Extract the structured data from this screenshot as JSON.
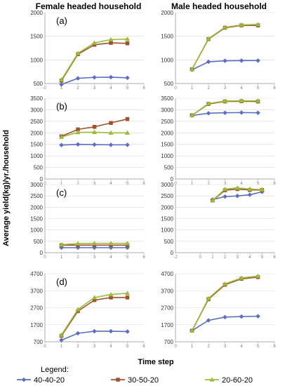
{
  "figure": {
    "col_titles": [
      "Female headed household",
      "Male headed household"
    ],
    "ylabel": "Average yield(kg)/yr./household",
    "xlabel": "Time step",
    "legend_title": "Legend:"
  },
  "colors": {
    "40-40-20": "#5B6FC0",
    "30-50-20": "#A0522D",
    "20-60-20": "#9BBB3B"
  },
  "chart_data": [
    {
      "type": "line",
      "row": 0,
      "col": 0,
      "panel_label": "(a)",
      "xlim": [
        0,
        6
      ],
      "ylim": [
        500,
        2000
      ],
      "yticks": [
        500,
        1000,
        1500,
        2000
      ],
      "xticks": [
        0,
        1,
        2,
        3,
        4,
        5,
        6
      ],
      "x": [
        1,
        2,
        3,
        4,
        5
      ],
      "series": [
        {
          "name": "40-40-20",
          "values": [
            480,
            610,
            630,
            635,
            620
          ]
        },
        {
          "name": "30-50-20",
          "values": [
            560,
            1120,
            1320,
            1360,
            1350
          ]
        },
        {
          "name": "20-60-20",
          "values": [
            580,
            1140,
            1360,
            1430,
            1440
          ]
        }
      ]
    },
    {
      "type": "line",
      "row": 0,
      "col": 1,
      "panel_label": "",
      "xlim": [
        0,
        6
      ],
      "ylim": [
        500,
        2000
      ],
      "yticks": [
        500,
        1000,
        1500,
        2000
      ],
      "xticks": [
        0,
        1,
        2,
        3,
        4,
        5,
        6
      ],
      "x": [
        1,
        2,
        3,
        4,
        5
      ],
      "series": [
        {
          "name": "40-40-20",
          "values": [
            790,
            960,
            980,
            985,
            985
          ]
        },
        {
          "name": "30-50-20",
          "values": [
            800,
            1440,
            1680,
            1730,
            1730
          ]
        },
        {
          "name": "20-60-20",
          "values": [
            800,
            1450,
            1690,
            1740,
            1750
          ]
        }
      ]
    },
    {
      "type": "line",
      "row": 1,
      "col": 0,
      "panel_label": "(b)",
      "xlim": [
        0,
        6
      ],
      "ylim": [
        0,
        3500
      ],
      "yticks": [
        0,
        500,
        1000,
        1500,
        2000,
        2500,
        3000,
        3500
      ],
      "xticks": [
        0,
        1,
        2,
        3,
        4,
        5,
        6
      ],
      "x": [
        1,
        2,
        3,
        4,
        5
      ],
      "series": [
        {
          "name": "40-40-20",
          "values": [
            1470,
            1500,
            1490,
            1480,
            1480
          ]
        },
        {
          "name": "30-50-20",
          "values": [
            1850,
            2150,
            2260,
            2430,
            2600
          ]
        },
        {
          "name": "20-60-20",
          "values": [
            1820,
            2020,
            2030,
            2000,
            2000
          ]
        }
      ]
    },
    {
      "type": "line",
      "row": 1,
      "col": 1,
      "panel_label": "",
      "xlim": [
        0,
        6
      ],
      "ylim": [
        0,
        3500
      ],
      "yticks": [
        0,
        500,
        1000,
        1500,
        2000,
        2500,
        3000,
        3500
      ],
      "xticks": [
        0,
        1,
        2,
        3,
        4,
        5,
        6
      ],
      "x": [
        1,
        2,
        3,
        4,
        5
      ],
      "series": [
        {
          "name": "40-40-20",
          "values": [
            2750,
            2850,
            2870,
            2880,
            2870
          ]
        },
        {
          "name": "30-50-20",
          "values": [
            2760,
            3250,
            3360,
            3370,
            3360
          ]
        },
        {
          "name": "20-60-20",
          "values": [
            2760,
            3270,
            3380,
            3390,
            3390
          ]
        }
      ]
    },
    {
      "type": "line",
      "row": 2,
      "col": 0,
      "panel_label": "(c)",
      "xlim": [
        0,
        6
      ],
      "ylim": [
        0,
        3000
      ],
      "yticks": [
        0,
        500,
        1000,
        1500,
        2000,
        2500,
        3000
      ],
      "xticks": [
        0,
        1,
        2,
        3,
        4,
        5,
        6
      ],
      "x": [
        1,
        2,
        3,
        4,
        5
      ],
      "series": [
        {
          "name": "40-40-20",
          "values": [
            220,
            220,
            220,
            220,
            220
          ]
        },
        {
          "name": "30-50-20",
          "values": [
            330,
            330,
            330,
            330,
            330
          ]
        },
        {
          "name": "20-60-20",
          "values": [
            350,
            400,
            410,
            410,
            410
          ]
        }
      ]
    },
    {
      "type": "line",
      "row": 2,
      "col": 1,
      "panel_label": "",
      "xlim": [
        -2,
        6
      ],
      "ylim": [
        0,
        3000
      ],
      "yticks": [
        0,
        500,
        1000,
        1500,
        2000,
        2500,
        3000
      ],
      "xticks": [
        -2,
        0,
        1,
        2,
        3,
        4,
        5,
        6
      ],
      "x": [
        1,
        2,
        3,
        4,
        5
      ],
      "series": [
        {
          "name": "40-40-20",
          "values": [
            2340,
            2470,
            2500,
            2550,
            2680
          ]
        },
        {
          "name": "30-50-20",
          "values": [
            2300,
            2750,
            2800,
            2760,
            2760
          ]
        },
        {
          "name": "20-60-20",
          "values": [
            2300,
            2800,
            2850,
            2800,
            2780
          ]
        }
      ]
    },
    {
      "type": "line",
      "row": 3,
      "col": 0,
      "panel_label": "(d)",
      "xlim": [
        0,
        6
      ],
      "ylim": [
        700,
        4700
      ],
      "yticks": [
        700,
        1700,
        2700,
        3700,
        4700
      ],
      "xticks": [
        0,
        1,
        2,
        3,
        4,
        5,
        6
      ],
      "x": [
        1,
        2,
        3,
        4,
        5
      ],
      "series": [
        {
          "name": "40-40-20",
          "values": [
            800,
            1200,
            1320,
            1320,
            1300
          ]
        },
        {
          "name": "30-50-20",
          "values": [
            1050,
            2500,
            3150,
            3300,
            3300
          ]
        },
        {
          "name": "20-60-20",
          "values": [
            1100,
            2600,
            3300,
            3480,
            3550
          ]
        }
      ]
    },
    {
      "type": "line",
      "row": 3,
      "col": 1,
      "panel_label": "",
      "xlim": [
        0,
        6
      ],
      "ylim": [
        700,
        4700
      ],
      "yticks": [
        700,
        1700,
        2700,
        3700,
        4700
      ],
      "xticks": [
        0,
        1,
        2,
        3,
        4,
        5,
        6
      ],
      "x": [
        1,
        2,
        3,
        4,
        5
      ],
      "series": [
        {
          "name": "40-40-20",
          "values": [
            1350,
            1960,
            2150,
            2180,
            2200
          ]
        },
        {
          "name": "30-50-20",
          "values": [
            1350,
            3200,
            4050,
            4400,
            4500
          ]
        },
        {
          "name": "20-60-20",
          "values": [
            1350,
            3250,
            4100,
            4450,
            4560
          ]
        }
      ]
    }
  ]
}
